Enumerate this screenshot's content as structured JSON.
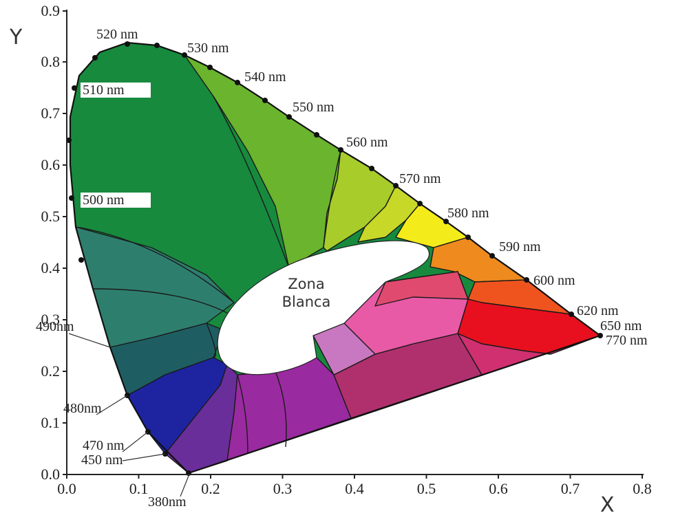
{
  "diagram": {
    "axes": {
      "x_title": "X",
      "y_title": "Y",
      "x_ticks": [
        "0.0",
        "0.1",
        "0.2",
        "0.3",
        "0.4",
        "0.5",
        "0.6",
        "0.7",
        "0.8"
      ],
      "y_ticks": [
        "0.0",
        "0.1",
        "0.2",
        "0.3",
        "0.4",
        "0.5",
        "0.6",
        "0.7",
        "0.8",
        "0.9"
      ]
    },
    "wavelength_labels": [
      {
        "text": "520 nm",
        "boxed": false
      },
      {
        "text": "530 nm",
        "boxed": false
      },
      {
        "text": "540 nm",
        "boxed": false
      },
      {
        "text": "550 nm",
        "boxed": false
      },
      {
        "text": "560 nm",
        "boxed": false
      },
      {
        "text": "570 nm",
        "boxed": false
      },
      {
        "text": "580 nm",
        "boxed": false
      },
      {
        "text": "590 nm",
        "boxed": false
      },
      {
        "text": "600 nm",
        "boxed": false
      },
      {
        "text": "620 nm",
        "boxed": false
      },
      {
        "text": "650 nm",
        "boxed": false
      },
      {
        "text": "770 nm",
        "boxed": false
      },
      {
        "text": "510 nm",
        "boxed": true
      },
      {
        "text": "500 nm",
        "boxed": true
      },
      {
        "text": "490nm",
        "boxed": false
      },
      {
        "text": "480nm",
        "boxed": false
      },
      {
        "text": "470 nm",
        "boxed": false
      },
      {
        "text": "450 nm",
        "boxed": false
      },
      {
        "text": "380nm",
        "boxed": false
      }
    ],
    "white_zone": {
      "line1": "Zona",
      "line2": "Blanca"
    },
    "colors": {
      "green_dark": "#178a3e",
      "green_yellow": "#6ab42e",
      "yellow_green": "#a8cc2a",
      "yellow": "#f4ec1a",
      "orange": "#ee8a1e",
      "red": "#e8101e",
      "teal": "#2e7e6e",
      "blue": "#1e24a0",
      "violet": "#6a2e9a",
      "purple": "#9a2aa0",
      "magenta": "#e0389a",
      "pink": "#e85aa6",
      "white": "#ffffff"
    }
  }
}
